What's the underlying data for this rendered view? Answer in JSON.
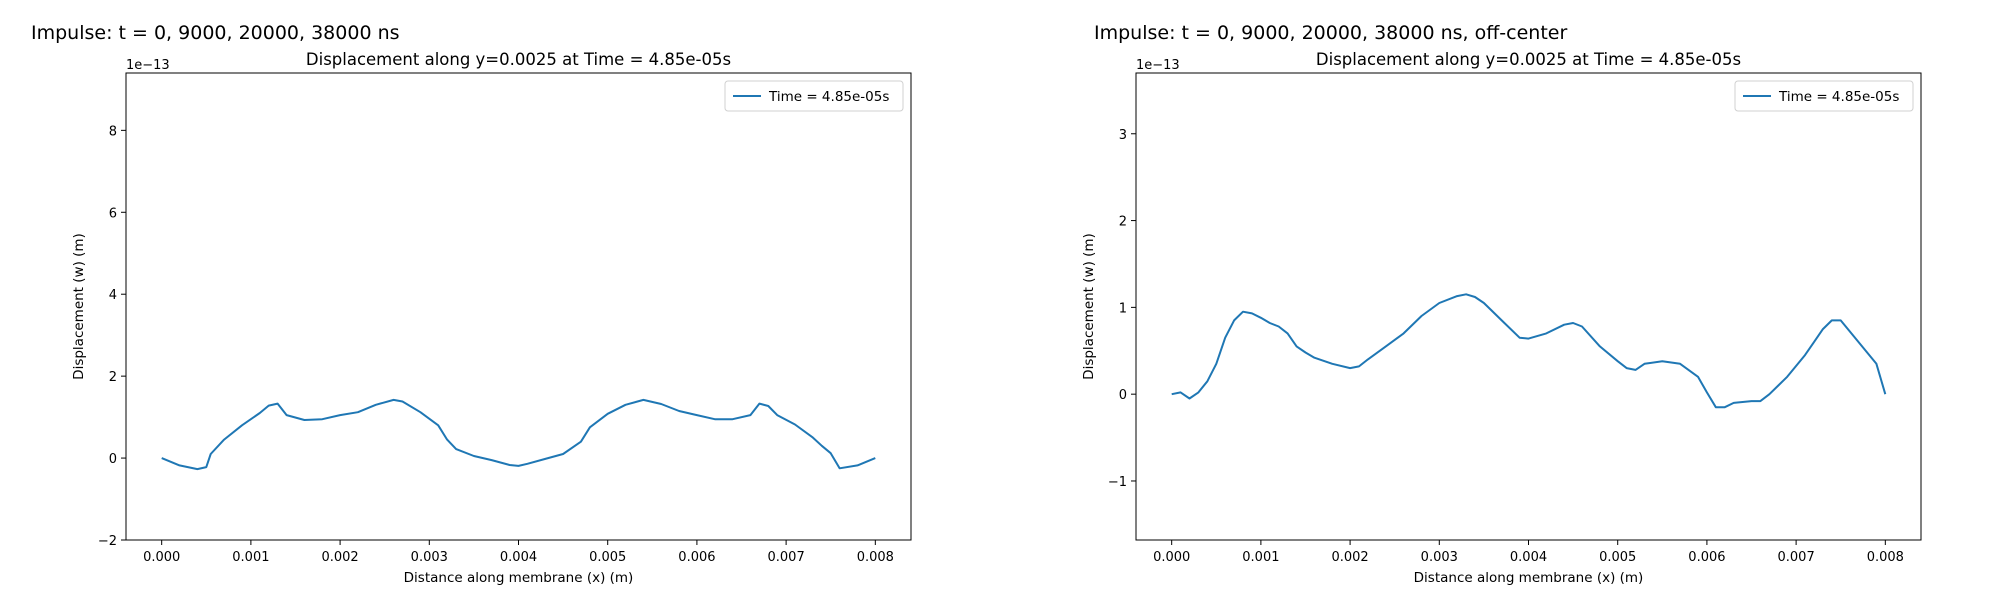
{
  "panels": [
    {
      "heading": "Impulse: t = 0, 9000, 20000, 38000 ns"
    },
    {
      "heading": "Impulse: t = 0, 9000, 20000, 38000 ns, off-center"
    }
  ],
  "chart_data": [
    {
      "type": "line",
      "title": "Displacement along y=0.0025 at Time = 4.85e-05s",
      "xlabel": "Distance along membrane (x) (m)",
      "ylabel": "Displacement (w) (m)",
      "y_scale_label": "1e−13",
      "xlim": [
        -0.0004,
        0.0084
      ],
      "ylim": [
        -2.0,
        9.4
      ],
      "x_ticks": [
        0,
        0.001,
        0.002,
        0.003,
        0.004,
        0.005,
        0.006,
        0.007,
        0.008
      ],
      "x_tick_labels": [
        "0.000",
        "0.001",
        "0.002",
        "0.003",
        "0.004",
        "0.005",
        "0.006",
        "0.007",
        "0.008"
      ],
      "y_ticks": [
        -2,
        0,
        2,
        4,
        6,
        8
      ],
      "y_tick_labels": [
        "−2",
        "0",
        "2",
        "4",
        "6",
        "8"
      ],
      "grid": false,
      "legend_position": "top-right",
      "series": [
        {
          "name": "Time = 4.85e-05s",
          "color": "#1f77b4",
          "x": [
            0,
            0.0002,
            0.0004,
            0.0005,
            0.00055,
            0.0007,
            0.0009,
            0.0011,
            0.0012,
            0.0013,
            0.0014,
            0.0016,
            0.0018,
            0.002,
            0.0022,
            0.0024,
            0.0026,
            0.0027,
            0.0029,
            0.0031,
            0.0032,
            0.0033,
            0.0035,
            0.0037,
            0.0039,
            0.004,
            0.0041,
            0.0043,
            0.0045,
            0.0047,
            0.0048,
            0.005,
            0.0052,
            0.0054,
            0.0056,
            0.0058,
            0.006,
            0.0062,
            0.0064,
            0.0066,
            0.0067,
            0.0068,
            0.0069,
            0.0071,
            0.0073,
            0.0074,
            0.0075,
            0.0076,
            0.0078,
            0.008
          ],
          "y": [
            0,
            -0.18,
            -0.27,
            -0.22,
            0.1,
            0.45,
            0.8,
            1.1,
            1.28,
            1.33,
            1.05,
            0.93,
            0.95,
            1.05,
            1.12,
            1.3,
            1.42,
            1.38,
            1.12,
            0.8,
            0.45,
            0.22,
            0.05,
            -0.05,
            -0.17,
            -0.19,
            -0.14,
            -0.02,
            0.1,
            0.4,
            0.75,
            1.08,
            1.3,
            1.42,
            1.32,
            1.15,
            1.05,
            0.95,
            0.95,
            1.05,
            1.33,
            1.27,
            1.05,
            0.82,
            0.5,
            0.3,
            0.12,
            -0.25,
            -0.18,
            0
          ]
        }
      ]
    },
    {
      "type": "line",
      "title": "Displacement along y=0.0025 at Time = 4.85e-05s",
      "xlabel": "Distance along membrane (x) (m)",
      "ylabel": "Displacement (w) (m)",
      "y_scale_label": "1e−13",
      "xlim": [
        -0.0004,
        0.0084
      ],
      "ylim": [
        -1.68,
        3.7
      ],
      "x_ticks": [
        0,
        0.001,
        0.002,
        0.003,
        0.004,
        0.005,
        0.006,
        0.007,
        0.008
      ],
      "x_tick_labels": [
        "0.000",
        "0.001",
        "0.002",
        "0.003",
        "0.004",
        "0.005",
        "0.006",
        "0.007",
        "0.008"
      ],
      "y_ticks": [
        -1,
        0,
        1,
        2,
        3
      ],
      "y_tick_labels": [
        "−1",
        "0",
        "1",
        "2",
        "3"
      ],
      "grid": false,
      "legend_position": "top-right",
      "series": [
        {
          "name": "Time = 4.85e-05s",
          "color": "#1f77b4",
          "x": [
            0,
            0.0001,
            0.0002,
            0.0003,
            0.0004,
            0.0005,
            0.0006,
            0.0007,
            0.0008,
            0.0009,
            0.001,
            0.0011,
            0.0012,
            0.0013,
            0.0014,
            0.0015,
            0.0016,
            0.0018,
            0.002,
            0.0021,
            0.0022,
            0.0024,
            0.0026,
            0.0028,
            0.003,
            0.0032,
            0.0033,
            0.0034,
            0.0035,
            0.0037,
            0.0039,
            0.004,
            0.0042,
            0.0044,
            0.0045,
            0.0046,
            0.0048,
            0.005,
            0.0051,
            0.0052,
            0.0053,
            0.0055,
            0.0057,
            0.0059,
            0.006,
            0.0061,
            0.0062,
            0.0063,
            0.0065,
            0.0066,
            0.0067,
            0.0069,
            0.0071,
            0.0072,
            0.0073,
            0.0074,
            0.0075,
            0.0077,
            0.0079,
            0.008
          ],
          "y": [
            0,
            0.02,
            -0.05,
            0.02,
            0.15,
            0.35,
            0.65,
            0.85,
            0.95,
            0.93,
            0.88,
            0.82,
            0.78,
            0.7,
            0.55,
            0.48,
            0.42,
            0.35,
            0.3,
            0.32,
            0.4,
            0.55,
            0.7,
            0.9,
            1.05,
            1.13,
            1.15,
            1.12,
            1.05,
            0.85,
            0.65,
            0.64,
            0.7,
            0.8,
            0.82,
            0.78,
            0.55,
            0.38,
            0.3,
            0.28,
            0.35,
            0.38,
            0.35,
            0.2,
            0.02,
            -0.15,
            -0.15,
            -0.1,
            -0.08,
            -0.08,
            0,
            0.2,
            0.45,
            0.6,
            0.75,
            0.85,
            0.85,
            0.6,
            0.35,
            0
          ]
        }
      ]
    }
  ]
}
